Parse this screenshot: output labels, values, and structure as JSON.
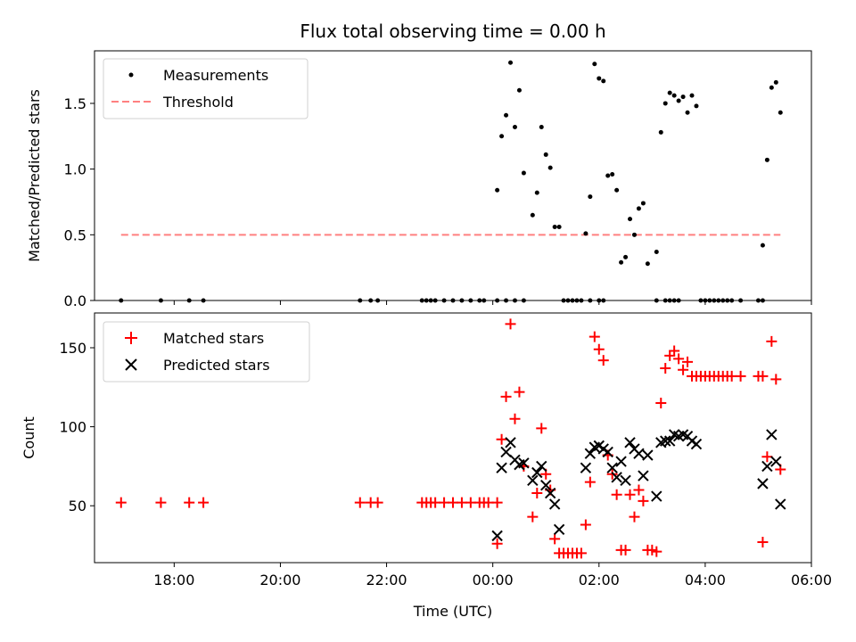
{
  "chart_data": [
    {
      "type": "scatter",
      "title": "Flux total observing time = 0.00 h",
      "ylabel": "Matched/Predicted stars",
      "xlim": [
        "16:30",
        "30:00"
      ],
      "ylim": [
        0,
        1.9
      ],
      "yticks": [
        0.0,
        0.5,
        1.0,
        1.5
      ],
      "ytick_labels": [
        "0.0",
        "0.5",
        "1.0",
        "1.5"
      ],
      "legend": "top-left",
      "series": [
        {
          "name": "Measurements",
          "marker": "dot",
          "color": "#000000",
          "points": [
            [
              "17:00",
              0.0
            ],
            [
              "17:45",
              0.0
            ],
            [
              "18:17",
              0.0
            ],
            [
              "18:33",
              0.0
            ],
            [
              "21:30",
              0.0
            ],
            [
              "21:42",
              0.0
            ],
            [
              "21:50",
              0.0
            ],
            [
              "22:40",
              0.0
            ],
            [
              "22:45",
              0.0
            ],
            [
              "22:50",
              0.0
            ],
            [
              "22:55",
              0.0
            ],
            [
              "23:05",
              0.0
            ],
            [
              "23:15",
              0.0
            ],
            [
              "23:25",
              0.0
            ],
            [
              "23:35",
              0.0
            ],
            [
              "23:45",
              0.0
            ],
            [
              "23:50",
              0.0
            ],
            [
              "24:05",
              0.0
            ],
            [
              "24:15",
              0.0
            ],
            [
              "24:25",
              0.0
            ],
            [
              "24:35",
              0.0
            ],
            [
              "24:05",
              0.84
            ],
            [
              "24:10",
              1.25
            ],
            [
              "24:15",
              1.41
            ],
            [
              "24:20",
              1.81
            ],
            [
              "24:25",
              1.32
            ],
            [
              "24:30",
              1.6
            ],
            [
              "24:35",
              0.97
            ],
            [
              "24:45",
              0.65
            ],
            [
              "24:50",
              0.82
            ],
            [
              "24:55",
              1.32
            ],
            [
              "25:00",
              1.11
            ],
            [
              "25:05",
              1.01
            ],
            [
              "25:10",
              0.56
            ],
            [
              "25:15",
              0.56
            ],
            [
              "25:45",
              0.51
            ],
            [
              "25:50",
              0.79
            ],
            [
              "25:55",
              1.8
            ],
            [
              "26:00",
              1.69
            ],
            [
              "26:05",
              1.67
            ],
            [
              "26:10",
              0.95
            ],
            [
              "26:15",
              0.96
            ],
            [
              "26:20",
              0.84
            ],
            [
              "26:25",
              0.29
            ],
            [
              "26:30",
              0.33
            ],
            [
              "26:35",
              0.62
            ],
            [
              "26:40",
              0.5
            ],
            [
              "26:45",
              0.7
            ],
            [
              "26:50",
              0.74
            ],
            [
              "26:55",
              0.28
            ],
            [
              "27:05",
              0.37
            ],
            [
              "27:10",
              1.28
            ],
            [
              "27:15",
              1.5
            ],
            [
              "27:20",
              1.58
            ],
            [
              "27:25",
              1.56
            ],
            [
              "27:30",
              1.52
            ],
            [
              "27:35",
              1.55
            ],
            [
              "27:40",
              1.43
            ],
            [
              "27:45",
              1.56
            ],
            [
              "27:50",
              1.48
            ],
            [
              "25:20",
              0.0
            ],
            [
              "25:25",
              0.0
            ],
            [
              "25:30",
              0.0
            ],
            [
              "25:35",
              0.0
            ],
            [
              "25:40",
              0.0
            ],
            [
              "25:50",
              0.0
            ],
            [
              "26:00",
              0.0
            ],
            [
              "26:05",
              0.0
            ],
            [
              "27:05",
              0.0
            ],
            [
              "27:15",
              0.0
            ],
            [
              "27:20",
              0.0
            ],
            [
              "27:25",
              0.0
            ],
            [
              "27:30",
              0.0
            ],
            [
              "27:55",
              0.0
            ],
            [
              "28:00",
              0.0
            ],
            [
              "28:05",
              0.0
            ],
            [
              "28:10",
              0.0
            ],
            [
              "28:15",
              0.0
            ],
            [
              "28:20",
              0.0
            ],
            [
              "28:25",
              0.0
            ],
            [
              "28:30",
              0.0
            ],
            [
              "28:40",
              0.0
            ],
            [
              "29:00",
              0.0
            ],
            [
              "29:05",
              0.0
            ],
            [
              "29:05",
              0.42
            ],
            [
              "29:10",
              1.07
            ],
            [
              "29:15",
              1.62
            ],
            [
              "29:20",
              1.66
            ],
            [
              "29:25",
              1.43
            ]
          ]
        },
        {
          "name": "Threshold",
          "marker": "dashed-line",
          "color": "#ff8080",
          "points": [
            [
              "17:00",
              0.5
            ],
            [
              "29:25",
              0.5
            ]
          ]
        }
      ]
    },
    {
      "type": "scatter",
      "xlabel": "Time (UTC)",
      "ylabel": "Count",
      "xlim": [
        "16:30",
        "30:00"
      ],
      "ylim": [
        14,
        172
      ],
      "xticks": [
        "18:00",
        "20:00",
        "22:00",
        "24:00",
        "26:00",
        "28:00",
        "30:00"
      ],
      "xtick_labels": [
        "18:00",
        "20:00",
        "22:00",
        "00:00",
        "02:00",
        "04:00",
        "06:00"
      ],
      "yticks": [
        50,
        100,
        150
      ],
      "ytick_labels": [
        "50",
        "100",
        "150"
      ],
      "legend": "top-left",
      "series": [
        {
          "name": "Matched stars",
          "marker": "plus",
          "color": "#ff0000",
          "points": [
            [
              "17:00",
              52
            ],
            [
              "17:45",
              52
            ],
            [
              "18:17",
              52
            ],
            [
              "18:33",
              52
            ],
            [
              "21:30",
              52
            ],
            [
              "21:42",
              52
            ],
            [
              "21:50",
              52
            ],
            [
              "22:40",
              52
            ],
            [
              "22:45",
              52
            ],
            [
              "22:50",
              52
            ],
            [
              "22:55",
              52
            ],
            [
              "23:05",
              52
            ],
            [
              "23:15",
              52
            ],
            [
              "23:25",
              52
            ],
            [
              "23:35",
              52
            ],
            [
              "23:45",
              52
            ],
            [
              "23:50",
              52
            ],
            [
              "23:55",
              52
            ],
            [
              "24:05",
              52
            ],
            [
              "24:05",
              26
            ],
            [
              "24:10",
              92
            ],
            [
              "24:15",
              119
            ],
            [
              "24:20",
              165
            ],
            [
              "24:25",
              105
            ],
            [
              "24:30",
              122
            ],
            [
              "24:35",
              75
            ],
            [
              "24:45",
              43
            ],
            [
              "24:50",
              58
            ],
            [
              "24:55",
              99
            ],
            [
              "25:00",
              70
            ],
            [
              "25:05",
              60
            ],
            [
              "25:10",
              29
            ],
            [
              "25:15",
              20
            ],
            [
              "25:20",
              20
            ],
            [
              "25:25",
              20
            ],
            [
              "25:30",
              20
            ],
            [
              "25:35",
              20
            ],
            [
              "25:40",
              20
            ],
            [
              "25:45",
              38
            ],
            [
              "25:50",
              65
            ],
            [
              "25:55",
              157
            ],
            [
              "26:00",
              149
            ],
            [
              "26:05",
              142
            ],
            [
              "26:10",
              82
            ],
            [
              "26:15",
              70
            ],
            [
              "26:20",
              57
            ],
            [
              "26:25",
              22
            ],
            [
              "26:30",
              22
            ],
            [
              "26:35",
              57
            ],
            [
              "26:40",
              43
            ],
            [
              "26:45",
              60
            ],
            [
              "26:50",
              53
            ],
            [
              "26:55",
              22
            ],
            [
              "27:00",
              22
            ],
            [
              "27:05",
              21
            ],
            [
              "27:10",
              115
            ],
            [
              "27:15",
              137
            ],
            [
              "27:20",
              145
            ],
            [
              "27:25",
              148
            ],
            [
              "27:30",
              143
            ],
            [
              "27:35",
              136
            ],
            [
              "27:40",
              141
            ],
            [
              "27:45",
              132
            ],
            [
              "27:50",
              132
            ],
            [
              "27:55",
              132
            ],
            [
              "28:00",
              132
            ],
            [
              "28:05",
              132
            ],
            [
              "28:10",
              132
            ],
            [
              "28:15",
              132
            ],
            [
              "28:20",
              132
            ],
            [
              "28:25",
              132
            ],
            [
              "28:30",
              132
            ],
            [
              "28:40",
              132
            ],
            [
              "29:00",
              132
            ],
            [
              "29:05",
              132
            ],
            [
              "29:05",
              27
            ],
            [
              "29:10",
              81
            ],
            [
              "29:15",
              154
            ],
            [
              "29:20",
              130
            ],
            [
              "29:25",
              73
            ]
          ]
        },
        {
          "name": "Predicted stars",
          "marker": "x",
          "color": "#000000",
          "points": [
            [
              "24:05",
              31
            ],
            [
              "24:10",
              74
            ],
            [
              "24:15",
              84
            ],
            [
              "24:20",
              90
            ],
            [
              "24:25",
              79
            ],
            [
              "24:30",
              76
            ],
            [
              "24:35",
              77
            ],
            [
              "24:45",
              66
            ],
            [
              "24:50",
              71
            ],
            [
              "24:55",
              75
            ],
            [
              "25:00",
              63
            ],
            [
              "25:05",
              58
            ],
            [
              "25:10",
              51
            ],
            [
              "25:15",
              35
            ],
            [
              "25:45",
              74
            ],
            [
              "25:50",
              83
            ],
            [
              "25:55",
              87
            ],
            [
              "26:00",
              88
            ],
            [
              "26:05",
              86
            ],
            [
              "26:10",
              84
            ],
            [
              "26:15",
              74
            ],
            [
              "26:20",
              68
            ],
            [
              "26:25",
              78
            ],
            [
              "26:30",
              66
            ],
            [
              "26:35",
              90
            ],
            [
              "26:40",
              86
            ],
            [
              "26:45",
              83
            ],
            [
              "26:50",
              69
            ],
            [
              "26:55",
              82
            ],
            [
              "27:05",
              56
            ],
            [
              "27:10",
              90
            ],
            [
              "27:15",
              91
            ],
            [
              "27:20",
              91
            ],
            [
              "27:25",
              95
            ],
            [
              "27:30",
              94
            ],
            [
              "27:35",
              95
            ],
            [
              "27:40",
              94
            ],
            [
              "27:45",
              91
            ],
            [
              "27:50",
              89
            ],
            [
              "29:05",
              64
            ],
            [
              "29:10",
              75
            ],
            [
              "29:15",
              95
            ],
            [
              "29:20",
              78
            ],
            [
              "29:25",
              51
            ]
          ]
        }
      ]
    }
  ]
}
